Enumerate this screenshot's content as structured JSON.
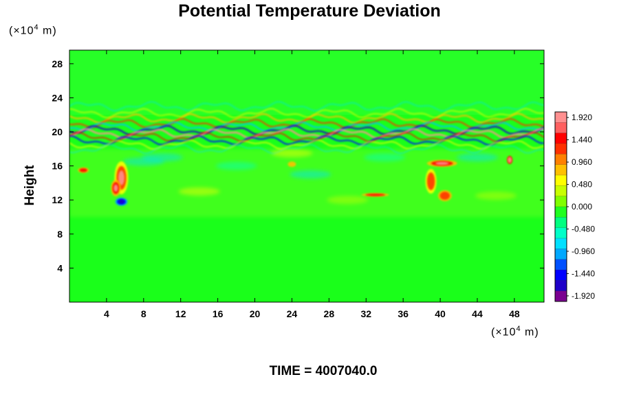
{
  "chart_data": {
    "type": "heatmap",
    "title": "Potential Temperature Deviation",
    "ylabel": "Height",
    "xunit": {
      "prefix": "(×10",
      "exp": "4",
      "suffix": " m)"
    },
    "yunit": {
      "prefix": "(×10",
      "exp": "4",
      "suffix": " m)"
    },
    "xlim": [
      0,
      51.2
    ],
    "ylim": [
      0,
      29.6
    ],
    "x_ticks": [
      "4",
      "8",
      "12",
      "16",
      "20",
      "24",
      "28",
      "32",
      "36",
      "40",
      "44",
      "48"
    ],
    "y_ticks": [
      "4",
      "8",
      "12",
      "16",
      "20",
      "24",
      "28"
    ],
    "colorbar": {
      "range": [
        -2.04,
        2.04
      ],
      "tick_labels": [
        "1.920",
        "1.440",
        "0.960",
        "0.480",
        "0.000",
        "-0.480",
        "-0.960",
        "-1.440",
        "-1.920"
      ],
      "colors": [
        "#7a0090",
        "#1e00c8",
        "#0000ff",
        "#0050ff",
        "#00a8ff",
        "#00e0ff",
        "#00ffc8",
        "#00ff80",
        "#20ff20",
        "#80ff00",
        "#c8ff00",
        "#ffff00",
        "#ffc000",
        "#ff8000",
        "#ff3000",
        "#ff0000",
        "#ff6060",
        "#ff9090"
      ]
    },
    "background_value": 0.0,
    "features": [
      {
        "name": "tropopause-band",
        "x_range": [
          0,
          51.2
        ],
        "y_range": [
          19,
          22
        ],
        "description_value_range": [
          -2.0,
          2.0
        ]
      },
      {
        "name": "warm-anomaly-west",
        "x_center": 5.5,
        "y_center": 14.5,
        "value": 1.9
      },
      {
        "name": "cold-anomaly-west",
        "x_center": 5.5,
        "y_center": 11.8,
        "value": -1.8
      },
      {
        "name": "warm-anomaly-east",
        "x_center": 40,
        "y_center": 16.3,
        "value": 1.7
      },
      {
        "name": "warm-anomaly-east-lower",
        "x_center": 39,
        "y_center": 13,
        "value": 1.2
      }
    ],
    "time_label": "TIME = 4007040.0"
  }
}
